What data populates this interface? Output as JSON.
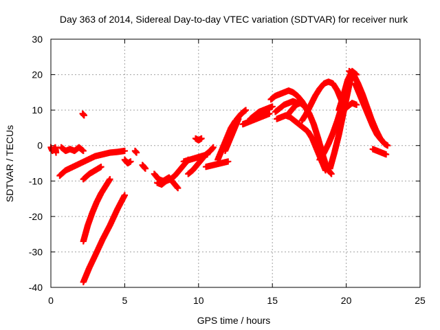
{
  "chart_data": {
    "type": "scatter",
    "title": "Day 363 of 2014, Sidereal Day-to-day VTEC variation (SDTVAR) for receiver nurk",
    "xlabel": "GPS time / hours",
    "ylabel": "SDTVAR / TECUs",
    "xlim": [
      0,
      25
    ],
    "ylim": [
      -40,
      30
    ],
    "xticks": [
      0,
      5,
      10,
      15,
      20,
      25
    ],
    "yticks": [
      -40,
      -30,
      -20,
      -10,
      0,
      10,
      20,
      30
    ],
    "grid": true,
    "marker": "+",
    "color": "#ff0000",
    "series_segments": [
      {
        "name": "seg01",
        "x": [
          0.0,
          0.1,
          0.2,
          0.3,
          0.35
        ],
        "y": [
          -0.5,
          -1.5,
          -1.0,
          -0.5,
          -2.0
        ]
      },
      {
        "name": "seg02",
        "x": [
          0.7,
          1.0,
          1.3,
          1.6,
          1.9,
          2.2
        ],
        "y": [
          -0.5,
          -1.5,
          -1.0,
          -1.5,
          -0.5,
          -1.5
        ]
      },
      {
        "name": "seg03",
        "x": [
          0.6,
          1.0,
          1.5,
          2.0,
          2.5,
          3.0,
          3.5,
          4.0,
          4.5,
          5.0
        ],
        "y": [
          -8.5,
          -7.0,
          -6.0,
          -5.0,
          -4.0,
          -3.0,
          -2.5,
          -2.0,
          -1.8,
          -1.5
        ]
      },
      {
        "name": "seg04",
        "x": [
          2.2,
          2.6,
          3.0,
          3.4
        ],
        "y": [
          -9.5,
          -8.0,
          -7.0,
          -6.0
        ]
      },
      {
        "name": "seg05",
        "x": [
          2.2,
          2.5,
          2.8,
          3.1,
          3.4,
          3.7,
          4.0
        ],
        "y": [
          -27.0,
          -22.5,
          -19.0,
          -16.0,
          -13.5,
          -11.5,
          -9.5
        ]
      },
      {
        "name": "seg06",
        "x": [
          2.2,
          2.6,
          3.0,
          3.5,
          4.0,
          4.5,
          5.0
        ],
        "y": [
          -38.5,
          -34.5,
          -31.0,
          -26.5,
          -22.5,
          -18.0,
          -14.0
        ]
      },
      {
        "name": "seg07",
        "x": [
          2.15,
          2.25
        ],
        "y": [
          9.0,
          8.5
        ]
      },
      {
        "name": "seg08",
        "x": [
          5.0,
          5.2,
          5.4
        ],
        "y": [
          -4.0,
          -5.0,
          -4.5
        ]
      },
      {
        "name": "seg09",
        "x": [
          5.7,
          5.8
        ],
        "y": [
          -1.5,
          -2.0
        ]
      },
      {
        "name": "seg10",
        "x": [
          6.2,
          6.3,
          6.4
        ],
        "y": [
          -5.5,
          -6.0,
          -6.5
        ]
      },
      {
        "name": "seg11",
        "x": [
          7.0,
          7.3,
          7.6,
          8.0,
          8.3,
          8.6
        ],
        "y": [
          -8.0,
          -9.5,
          -10.0,
          -9.0,
          -10.5,
          -12.0
        ]
      },
      {
        "name": "seg12",
        "x": [
          7.2,
          7.5,
          7.8,
          8.1,
          8.4,
          8.7,
          9.0,
          9.3
        ],
        "y": [
          -10.5,
          -11.0,
          -10.0,
          -9.5,
          -8.5,
          -7.0,
          -5.5,
          -4.0
        ]
      },
      {
        "name": "seg13",
        "x": [
          9.3,
          9.6,
          9.9,
          10.2,
          10.5,
          10.8,
          11.0
        ],
        "y": [
          -8.0,
          -7.0,
          -5.5,
          -4.0,
          -2.5,
          -1.5,
          -0.5
        ]
      },
      {
        "name": "seg14",
        "x": [
          9.0,
          9.4,
          9.8,
          10.2,
          10.6
        ],
        "y": [
          -4.5,
          -4.0,
          -3.5,
          -3.0,
          -2.5
        ]
      },
      {
        "name": "seg15",
        "x": [
          9.8,
          10.0,
          10.2
        ],
        "y": [
          2.0,
          1.5,
          2.0
        ]
      },
      {
        "name": "seg16",
        "x": [
          10.5,
          11.0,
          11.5,
          12.0
        ],
        "y": [
          -6.0,
          -5.5,
          -5.0,
          -4.5
        ]
      },
      {
        "name": "seg17",
        "x": [
          11.3,
          11.6,
          11.9,
          12.2,
          12.5
        ],
        "y": [
          -4.0,
          -1.0,
          2.0,
          5.0,
          7.0
        ]
      },
      {
        "name": "seg18",
        "x": [
          11.8,
          12.1,
          12.4,
          12.7
        ],
        "y": [
          -1.5,
          1.5,
          4.5,
          7.5
        ]
      },
      {
        "name": "seg19",
        "x": [
          12.3,
          12.6,
          12.9,
          13.2
        ],
        "y": [
          5.0,
          7.5,
          9.0,
          10.0
        ]
      },
      {
        "name": "seg20",
        "x": [
          13.0,
          13.3,
          13.6,
          13.9,
          14.2,
          14.5,
          14.8
        ],
        "y": [
          6.0,
          6.5,
          7.0,
          7.5,
          8.0,
          8.5,
          9.0
        ]
      },
      {
        "name": "seg21",
        "x": [
          13.5,
          13.8,
          14.1,
          14.4,
          14.7,
          15.0
        ],
        "y": [
          7.5,
          8.5,
          9.5,
          10.0,
          10.5,
          11.0
        ]
      },
      {
        "name": "seg22",
        "x": [
          14.9,
          15.2,
          15.5,
          15.8,
          16.1,
          16.4,
          16.7,
          17.0,
          17.3,
          17.5
        ],
        "y": [
          13.0,
          14.0,
          14.5,
          15.0,
          15.5,
          15.0,
          14.0,
          12.5,
          10.5,
          8.5
        ]
      },
      {
        "name": "seg23",
        "x": [
          15.2,
          15.5,
          15.8,
          16.1,
          16.4,
          16.7
        ],
        "y": [
          9.5,
          10.5,
          11.5,
          12.0,
          12.5,
          12.0
        ]
      },
      {
        "name": "seg24",
        "x": [
          15.3,
          15.6,
          15.9,
          16.2,
          16.5,
          16.8,
          17.1,
          17.4,
          17.7,
          18.0,
          18.3,
          18.6
        ],
        "y": [
          7.5,
          8.0,
          8.5,
          8.0,
          7.0,
          6.0,
          5.0,
          4.0,
          2.0,
          -1.0,
          -4.0,
          -7.0
        ]
      },
      {
        "name": "seg25",
        "x": [
          16.0,
          16.3,
          16.6,
          16.9,
          17.2,
          17.5,
          17.8,
          18.1,
          18.4,
          18.7,
          19.0
        ],
        "y": [
          8.5,
          10.0,
          11.5,
          12.0,
          11.0,
          9.0,
          6.0,
          2.0,
          -2.5,
          -6.5,
          -8.0
        ]
      },
      {
        "name": "seg26",
        "x": [
          17.0,
          17.3,
          17.6,
          17.9,
          18.2,
          18.5,
          18.8,
          19.1,
          19.4,
          19.7
        ],
        "y": [
          7.0,
          9.0,
          11.5,
          14.0,
          16.0,
          17.5,
          18.0,
          17.5,
          15.5,
          12.5
        ]
      },
      {
        "name": "seg27",
        "x": [
          18.2,
          18.5,
          18.8,
          19.1,
          19.4,
          19.7,
          20.0,
          20.2
        ],
        "y": [
          -4.0,
          -2.0,
          0.5,
          3.5,
          7.0,
          11.0,
          15.0,
          17.5
        ]
      },
      {
        "name": "seg28",
        "x": [
          18.9,
          19.2,
          19.5,
          19.8,
          20.1,
          20.3
        ],
        "y": [
          -6.5,
          -2.0,
          3.0,
          9.0,
          15.0,
          19.0
        ]
      },
      {
        "name": "seg29",
        "x": [
          19.5,
          19.8,
          20.1,
          20.4,
          20.7
        ],
        "y": [
          10.0,
          14.0,
          18.5,
          21.0,
          20.0
        ]
      },
      {
        "name": "seg30",
        "x": [
          20.2,
          20.5,
          20.8,
          21.1,
          21.4,
          21.7,
          22.0,
          22.3,
          22.6,
          22.8
        ],
        "y": [
          21.0,
          20.0,
          17.5,
          14.5,
          11.0,
          7.5,
          4.5,
          2.0,
          0.5,
          0.0
        ]
      },
      {
        "name": "seg31",
        "x": [
          20.6,
          20.9,
          21.2,
          21.5,
          21.8,
          22.1,
          22.4
        ],
        "y": [
          17.5,
          14.5,
          11.5,
          8.5,
          5.5,
          3.0,
          1.5
        ]
      },
      {
        "name": "seg32",
        "x": [
          21.8,
          22.1,
          22.4,
          22.7
        ],
        "y": [
          -1.0,
          -1.5,
          -2.0,
          -2.5
        ]
      },
      {
        "name": "seg33",
        "x": [
          19.8,
          20.1,
          20.4,
          20.7
        ],
        "y": [
          10.0,
          11.0,
          12.0,
          11.5
        ]
      }
    ]
  }
}
